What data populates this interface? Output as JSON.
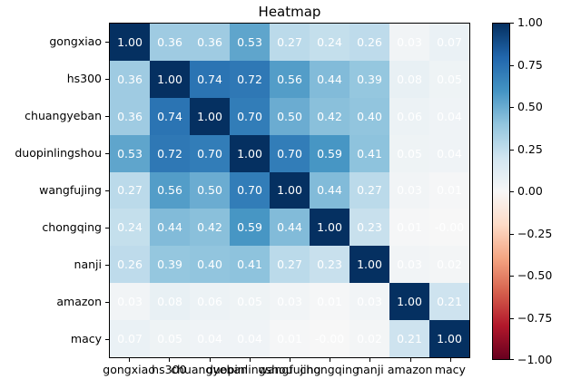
{
  "chart_data": {
    "type": "heatmap",
    "title": "Heatmap",
    "categories": [
      "gongxiao",
      "hs300",
      "chuangyeban",
      "duopinlingshou",
      "wangfujing",
      "chongqing",
      "nanji",
      "amazon",
      "macy"
    ],
    "values": [
      [
        1.0,
        0.36,
        0.36,
        0.53,
        0.27,
        0.24,
        0.26,
        0.03,
        0.07
      ],
      [
        0.36,
        1.0,
        0.74,
        0.72,
        0.56,
        0.44,
        0.39,
        0.08,
        0.05
      ],
      [
        0.36,
        0.74,
        1.0,
        0.7,
        0.5,
        0.42,
        0.4,
        0.06,
        0.04
      ],
      [
        0.53,
        0.72,
        0.7,
        1.0,
        0.7,
        0.59,
        0.41,
        0.05,
        0.04
      ],
      [
        0.27,
        0.56,
        0.5,
        0.7,
        1.0,
        0.44,
        0.27,
        0.03,
        0.01
      ],
      [
        0.24,
        0.44,
        0.42,
        0.59,
        0.44,
        1.0,
        0.23,
        0.01,
        -0.001
      ],
      [
        0.26,
        0.39,
        0.4,
        0.41,
        0.27,
        0.23,
        1.0,
        0.03,
        0.02
      ],
      [
        0.03,
        0.08,
        0.06,
        0.05,
        0.03,
        0.01,
        0.03,
        1.0,
        0.21
      ],
      [
        0.07,
        0.05,
        0.04,
        0.04,
        0.01,
        -0.001,
        0.02,
        0.21,
        1.0
      ]
    ],
    "cell_labels": [
      [
        "1.00",
        "0.36",
        "0.36",
        "0.53",
        "0.27",
        "0.24",
        "0.26",
        "0.03",
        "0.07"
      ],
      [
        "0.36",
        "1.00",
        "0.74",
        "0.72",
        "0.56",
        "0.44",
        "0.39",
        "0.08",
        "0.05"
      ],
      [
        "0.36",
        "0.74",
        "1.00",
        "0.70",
        "0.50",
        "0.42",
        "0.40",
        "0.06",
        "0.04"
      ],
      [
        "0.53",
        "0.72",
        "0.70",
        "1.00",
        "0.70",
        "0.59",
        "0.41",
        "0.05",
        "0.04"
      ],
      [
        "0.27",
        "0.56",
        "0.50",
        "0.70",
        "1.00",
        "0.44",
        "0.27",
        "0.03",
        "0.01"
      ],
      [
        "0.24",
        "0.44",
        "0.42",
        "0.59",
        "0.44",
        "1.00",
        "0.23",
        "0.01",
        "-0.00"
      ],
      [
        "0.26",
        "0.39",
        "0.40",
        "0.41",
        "0.27",
        "0.23",
        "1.00",
        "0.03",
        "0.02"
      ],
      [
        "0.03",
        "0.08",
        "0.06",
        "0.05",
        "0.03",
        "0.01",
        "0.03",
        "1.00",
        "0.21"
      ],
      [
        "0.07",
        "0.05",
        "0.04",
        "0.04",
        "0.01",
        "-0.00",
        "0.02",
        "0.21",
        "1.00"
      ]
    ],
    "vmin": -1,
    "vmax": 1,
    "colormap": "RdBu",
    "legend_position": "right-colorbar",
    "grid": false,
    "colorbar_tick_labels": [
      "1.00",
      "0.75",
      "0.50",
      "0.25",
      "0.00",
      "−0.25",
      "−0.50",
      "−0.75",
      "−1.00"
    ],
    "colorbar_tick_values": [
      1.0,
      0.75,
      0.5,
      0.25,
      0.0,
      -0.25,
      -0.5,
      -0.75,
      -1.0
    ]
  },
  "colors": {
    "colormap_stops_low_to_high": [
      "#67001f",
      "#b2182b",
      "#d6604d",
      "#f4a582",
      "#fddbc7",
      "#f7f7f7",
      "#d1e5f0",
      "#92c5de",
      "#4393c3",
      "#2166ac",
      "#053061"
    ],
    "cell_text": "#ffffff",
    "axis_text": "#000000",
    "background": "#ffffff"
  }
}
